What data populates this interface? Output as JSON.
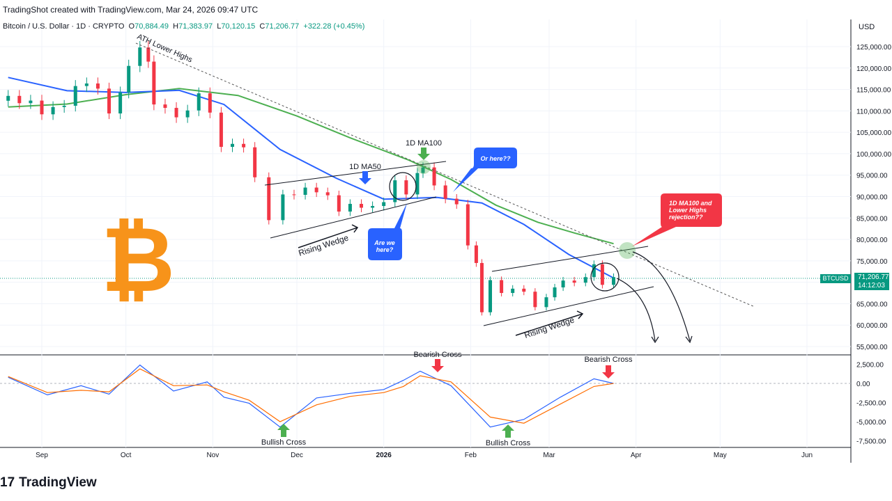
{
  "header": {
    "created_line": "TradingShot created with TradingView.com, Mar 24, 2026 09:47 UTC"
  },
  "symbol_line": {
    "name": "Bitcoin / U.S. Dollar · 1D · CRYPTO",
    "o_label": "O",
    "o_value": "70,884.49",
    "h_label": "H",
    "h_value": "71,383.97",
    "l_label": "L",
    "l_value": "70,120.15",
    "c_label": "C",
    "c_value": "71,206.77",
    "change": "+322.28 (+0.45%)"
  },
  "price_axis": {
    "currency": "USD",
    "ticker": "BTCUSD",
    "last_price": "71,206.77",
    "countdown": "14:12:03"
  },
  "branding": {
    "logo_text": "TradingView",
    "logo_mark": "17"
  },
  "colors": {
    "bull": "#089981",
    "bear": "#f23645",
    "ma50": "#2962ff",
    "ma100": "#4caf50",
    "macd": "#2962ff",
    "signal": "#ff6d00",
    "bitcoin": "#f7931a",
    "arrow_up": "#4caf50",
    "arrow_down": "#f23645",
    "callout_blue": "#2962ff",
    "callout_red": "#f23645"
  },
  "annotations": {
    "ath_lower_highs": "ATH Lower Highs",
    "ma50_label": "1D MA50",
    "ma100_label": "1D MA100",
    "rising_wedge_1": "Rising Wedge",
    "rising_wedge_2": "Rising Wedge",
    "are_we_here": "Are we here?",
    "or_here": "Or here??",
    "rejection": "1D MA100 and Lower Highs rejection??",
    "bullish_cross_1": "Bullish Cross",
    "bullish_cross_2": "Bullish Cross",
    "bearish_cross_1": "Bearish Cross",
    "bearish_cross_2": "Bearish Cross",
    "bitcoin_icon": "bitcoin-logo-icon"
  },
  "chart_data": [
    {
      "type": "line",
      "title": "Bitcoin / U.S. Dollar · 1D · CRYPTO",
      "x_ticks": [
        "Sep",
        "Oct",
        "Nov",
        "Dec",
        "2026",
        "Feb",
        "Mar",
        "Apr",
        "May",
        "Jun"
      ],
      "y_ticks": [
        "125,000.00",
        "120,000.00",
        "115,000.00",
        "110,000.00",
        "105,000.00",
        "100,000.00",
        "95,000.00",
        "90,000.00",
        "85,000.00",
        "80,000.00",
        "75,000.00",
        "70,000.00",
        "65,000.00",
        "60,000.00",
        "55,000.00"
      ],
      "ylim": [
        53000,
        129000
      ],
      "candle_closes": [
        {
          "date": "2025-08-20",
          "close": 113500
        },
        {
          "date": "2025-08-24",
          "close": 111800
        },
        {
          "date": "2025-08-28",
          "close": 112400
        },
        {
          "date": "2025-09-01",
          "close": 109200
        },
        {
          "date": "2025-09-05",
          "close": 110900
        },
        {
          "date": "2025-09-09",
          "close": 111200
        },
        {
          "date": "2025-09-13",
          "close": 115800
        },
        {
          "date": "2025-09-17",
          "close": 116400
        },
        {
          "date": "2025-09-21",
          "close": 115200
        },
        {
          "date": "2025-09-25",
          "close": 109400
        },
        {
          "date": "2025-09-29",
          "close": 114300
        },
        {
          "date": "2025-10-02",
          "close": 120500
        },
        {
          "date": "2025-10-06",
          "close": 124800
        },
        {
          "date": "2025-10-09",
          "close": 121500
        },
        {
          "date": "2025-10-11",
          "close": 111500
        },
        {
          "date": "2025-10-15",
          "close": 110700
        },
        {
          "date": "2025-10-19",
          "close": 108500
        },
        {
          "date": "2025-10-23",
          "close": 110100
        },
        {
          "date": "2025-10-27",
          "close": 114100
        },
        {
          "date": "2025-10-31",
          "close": 109600
        },
        {
          "date": "2025-11-04",
          "close": 101600
        },
        {
          "date": "2025-11-08",
          "close": 102300
        },
        {
          "date": "2025-11-12",
          "close": 101500
        },
        {
          "date": "2025-11-16",
          "close": 94500
        },
        {
          "date": "2025-11-21",
          "close": 84500
        },
        {
          "date": "2025-11-26",
          "close": 90500
        },
        {
          "date": "2025-11-30",
          "close": 90400
        },
        {
          "date": "2025-12-04",
          "close": 92100
        },
        {
          "date": "2025-12-08",
          "close": 91000
        },
        {
          "date": "2025-12-12",
          "close": 90300
        },
        {
          "date": "2025-12-16",
          "close": 86500
        },
        {
          "date": "2025-12-20",
          "close": 88300
        },
        {
          "date": "2025-12-24",
          "close": 87400
        },
        {
          "date": "2025-12-28",
          "close": 87800
        },
        {
          "date": "2026-01-01",
          "close": 88700
        },
        {
          "date": "2026-01-05",
          "close": 93800
        },
        {
          "date": "2026-01-09",
          "close": 90500
        },
        {
          "date": "2026-01-13",
          "close": 95500
        },
        {
          "date": "2026-01-15",
          "close": 96800
        },
        {
          "date": "2026-01-19",
          "close": 92600
        },
        {
          "date": "2026-01-23",
          "close": 89500
        },
        {
          "date": "2026-01-27",
          "close": 88200
        },
        {
          "date": "2026-01-31",
          "close": 78600
        },
        {
          "date": "2026-02-03",
          "close": 74500
        },
        {
          "date": "2026-02-05",
          "close": 63000
        },
        {
          "date": "2026-02-08",
          "close": 70500
        },
        {
          "date": "2026-02-12",
          "close": 67500
        },
        {
          "date": "2026-02-16",
          "close": 68500
        },
        {
          "date": "2026-02-20",
          "close": 67800
        },
        {
          "date": "2026-02-24",
          "close": 64200
        },
        {
          "date": "2026-02-28",
          "close": 66500
        },
        {
          "date": "2026-03-03",
          "close": 68800
        },
        {
          "date": "2026-03-06",
          "close": 70400
        },
        {
          "date": "2026-03-10",
          "close": 69900
        },
        {
          "date": "2026-03-14",
          "close": 71200
        },
        {
          "date": "2026-03-17",
          "close": 74200
        },
        {
          "date": "2026-03-20",
          "close": 69400
        },
        {
          "date": "2026-03-24",
          "close": 71206.77
        }
      ],
      "ma50": [
        {
          "date": "2025-08-20",
          "value": 117800
        },
        {
          "date": "2025-09-10",
          "value": 114700
        },
        {
          "date": "2025-10-01",
          "value": 114300
        },
        {
          "date": "2025-10-20",
          "value": 114800
        },
        {
          "date": "2025-11-05",
          "value": 111500
        },
        {
          "date": "2025-11-25",
          "value": 101000
        },
        {
          "date": "2025-12-15",
          "value": 94300
        },
        {
          "date": "2026-01-01",
          "value": 89400
        },
        {
          "date": "2026-01-20",
          "value": 89800
        },
        {
          "date": "2026-02-05",
          "value": 88500
        },
        {
          "date": "2026-02-20",
          "value": 83500
        },
        {
          "date": "2026-03-08",
          "value": 76500
        },
        {
          "date": "2026-03-24",
          "value": 71000
        }
      ],
      "ma100": [
        {
          "date": "2025-08-20",
          "value": 110900
        },
        {
          "date": "2025-09-10",
          "value": 111600
        },
        {
          "date": "2025-10-01",
          "value": 113800
        },
        {
          "date": "2025-10-20",
          "value": 115200
        },
        {
          "date": "2025-11-10",
          "value": 113600
        },
        {
          "date": "2025-12-01",
          "value": 108800
        },
        {
          "date": "2025-12-20",
          "value": 103700
        },
        {
          "date": "2026-01-10",
          "value": 98500
        },
        {
          "date": "2026-01-25",
          "value": 94000
        },
        {
          "date": "2026-02-10",
          "value": 88000
        },
        {
          "date": "2026-02-25",
          "value": 84000
        },
        {
          "date": "2026-03-10",
          "value": 81500
        },
        {
          "date": "2026-03-24",
          "value": 79000
        }
      ]
    },
    {
      "type": "line",
      "title": "",
      "y_ticks": [
        "2,500.00",
        "0.00",
        "-2,500.00",
        "-5,000.00",
        "-7,500.00"
      ],
      "ylim": [
        -8600,
        3600
      ],
      "series": [
        {
          "values_label": "macd",
          "points": [
            {
              "date": "2025-08-20",
              "value": 800
            },
            {
              "date": "2025-09-03",
              "value": -1500
            },
            {
              "date": "2025-09-15",
              "value": -300
            },
            {
              "date": "2025-09-25",
              "value": -1400
            },
            {
              "date": "2025-10-06",
              "value": 2400
            },
            {
              "date": "2025-10-18",
              "value": -1000
            },
            {
              "date": "2025-10-30",
              "value": 200
            },
            {
              "date": "2025-11-05",
              "value": -1800
            },
            {
              "date": "2025-11-14",
              "value": -2600
            },
            {
              "date": "2025-11-25",
              "value": -5700
            },
            {
              "date": "2025-12-08",
              "value": -1900
            },
            {
              "date": "2025-12-20",
              "value": -1300
            },
            {
              "date": "2026-01-01",
              "value": -800
            },
            {
              "date": "2026-01-08",
              "value": 400
            },
            {
              "date": "2026-01-14",
              "value": 1600
            },
            {
              "date": "2026-01-25",
              "value": -300
            },
            {
              "date": "2026-02-08",
              "value": -5700
            },
            {
              "date": "2026-02-20",
              "value": -4700
            },
            {
              "date": "2026-03-05",
              "value": -1800
            },
            {
              "date": "2026-03-17",
              "value": 600
            },
            {
              "date": "2026-03-24",
              "value": 0
            }
          ]
        },
        {
          "values_label": "signal",
          "points": [
            {
              "date": "2025-08-20",
              "value": 900
            },
            {
              "date": "2025-09-03",
              "value": -1200
            },
            {
              "date": "2025-09-15",
              "value": -900
            },
            {
              "date": "2025-09-25",
              "value": -1100
            },
            {
              "date": "2025-10-06",
              "value": 1900
            },
            {
              "date": "2025-10-18",
              "value": -300
            },
            {
              "date": "2025-10-30",
              "value": -200
            },
            {
              "date": "2025-11-05",
              "value": -1100
            },
            {
              "date": "2025-11-14",
              "value": -2200
            },
            {
              "date": "2025-11-25",
              "value": -5000
            },
            {
              "date": "2025-12-08",
              "value": -2800
            },
            {
              "date": "2025-12-20",
              "value": -1700
            },
            {
              "date": "2026-01-01",
              "value": -1200
            },
            {
              "date": "2026-01-08",
              "value": -400
            },
            {
              "date": "2026-01-14",
              "value": 1000
            },
            {
              "date": "2026-01-25",
              "value": 200
            },
            {
              "date": "2026-02-08",
              "value": -4400
            },
            {
              "date": "2026-02-20",
              "value": -5200
            },
            {
              "date": "2026-03-05",
              "value": -2700
            },
            {
              "date": "2026-03-17",
              "value": -400
            },
            {
              "date": "2026-03-24",
              "value": 0
            }
          ]
        }
      ]
    }
  ]
}
